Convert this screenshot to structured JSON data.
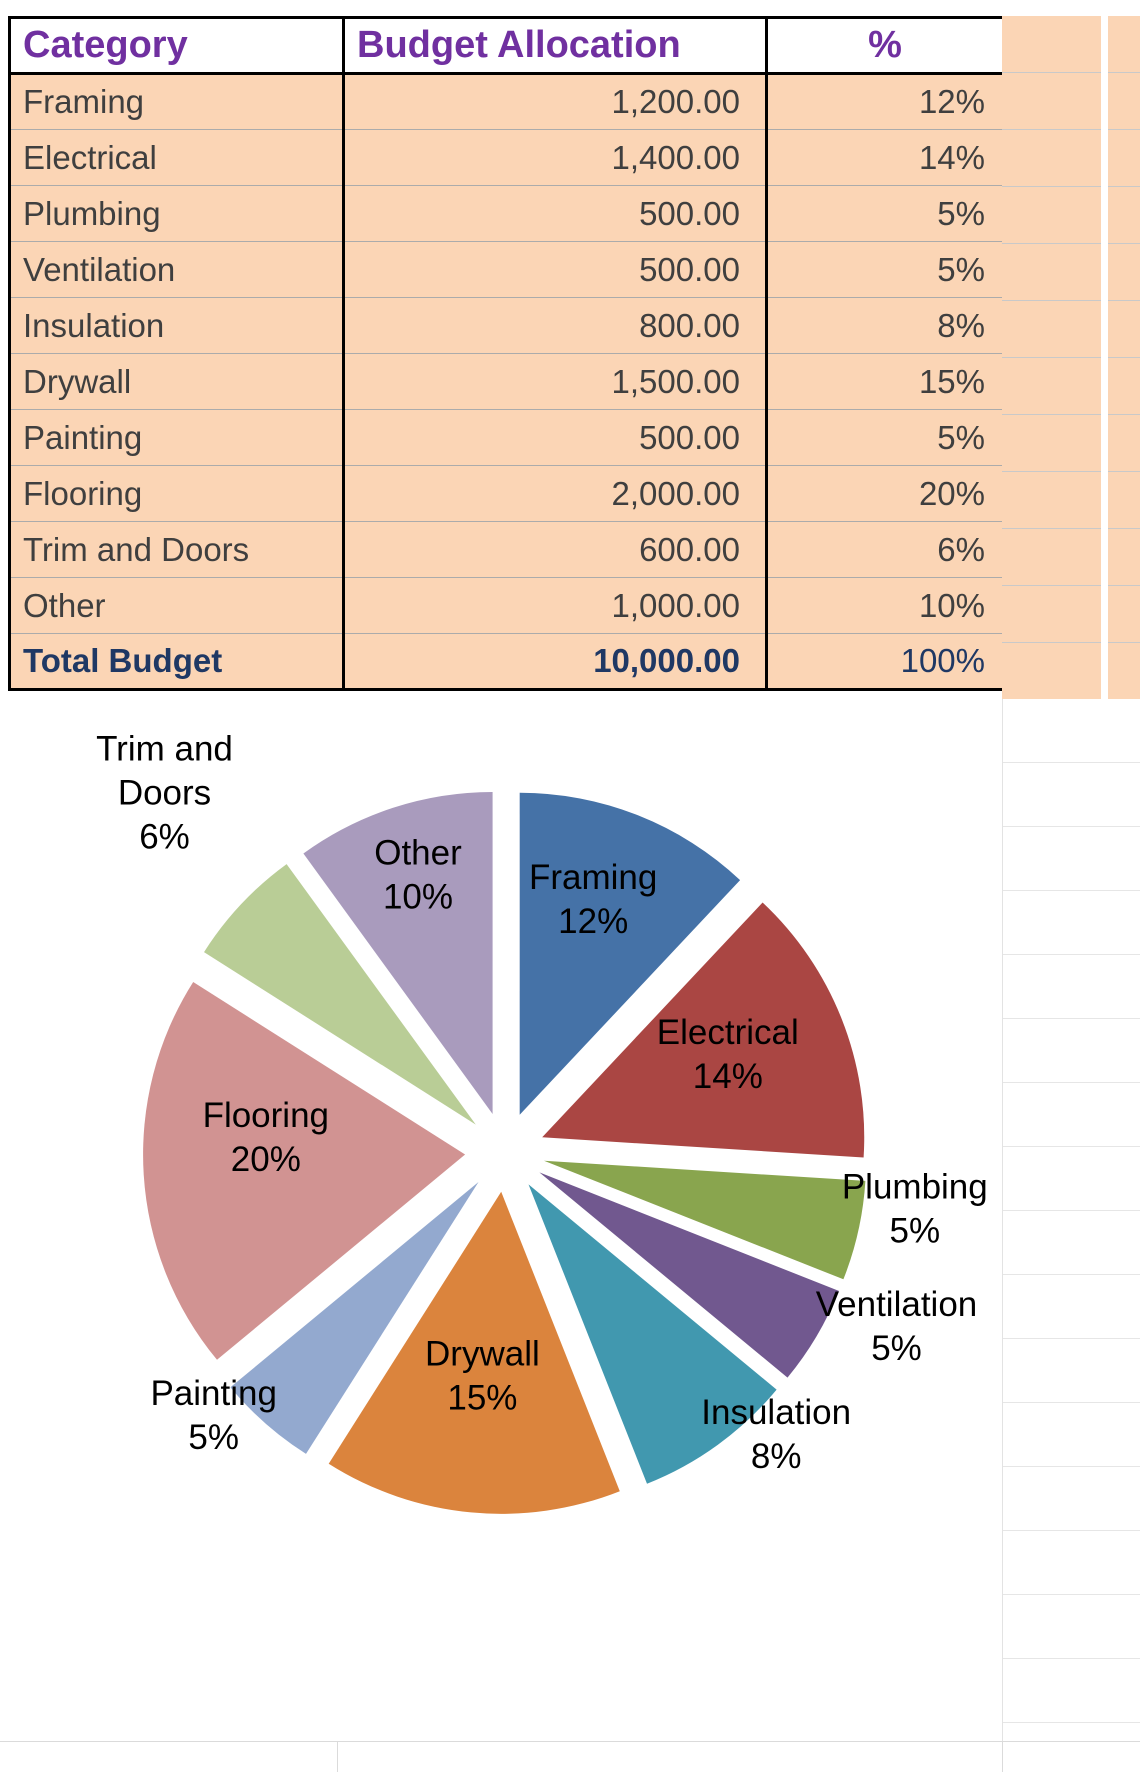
{
  "table": {
    "headers": [
      "Category",
      "Budget Allocation",
      "%"
    ],
    "rows": [
      {
        "category": "Framing",
        "budget": "1,200.00",
        "pct": "12%"
      },
      {
        "category": "Electrical",
        "budget": "1,400.00",
        "pct": "14%"
      },
      {
        "category": "Plumbing",
        "budget": "500.00",
        "pct": "5%"
      },
      {
        "category": "Ventilation",
        "budget": "500.00",
        "pct": "5%"
      },
      {
        "category": "Insulation",
        "budget": "800.00",
        "pct": "8%"
      },
      {
        "category": "Drywall",
        "budget": "1,500.00",
        "pct": "15%"
      },
      {
        "category": "Painting",
        "budget": "500.00",
        "pct": "5%"
      },
      {
        "category": "Flooring",
        "budget": "2,000.00",
        "pct": "20%"
      },
      {
        "category": "Trim and Doors",
        "budget": "600.00",
        "pct": "6%"
      },
      {
        "category": "Other",
        "budget": "1,000.00",
        "pct": "10%"
      }
    ],
    "total": {
      "category": "Total Budget",
      "budget": "10,000.00",
      "pct": "100%"
    }
  },
  "chart_data": {
    "type": "pie",
    "categories": [
      "Framing",
      "Electrical",
      "Plumbing",
      "Ventilation",
      "Insulation",
      "Drywall",
      "Painting",
      "Flooring",
      "Trim and Doors",
      "Other"
    ],
    "values": [
      12,
      14,
      5,
      5,
      8,
      15,
      5,
      20,
      6,
      10
    ],
    "unit": "percent",
    "budget_values": [
      1200,
      1400,
      500,
      500,
      800,
      1500,
      500,
      2000,
      600,
      1000
    ],
    "total_budget": 10000,
    "labels": [
      [
        "Framing",
        "12%"
      ],
      [
        "Electrical",
        "14%"
      ],
      [
        "Plumbing",
        "5%"
      ],
      [
        "Ventilation",
        "5%"
      ],
      [
        "Insulation",
        "8%"
      ],
      [
        "Drywall",
        "15%"
      ],
      [
        "Painting",
        "5%"
      ],
      [
        "Flooring",
        "20%"
      ],
      [
        "Trim and",
        "Doors",
        "6%"
      ],
      [
        "Other",
        "10%"
      ]
    ],
    "colors": [
      "#4572A7",
      "#AA4643",
      "#89A54E",
      "#71588F",
      "#4198AF",
      "#DB843D",
      "#93A9CF",
      "#D19392",
      "#B9CD96",
      "#A99BBD"
    ],
    "layout": {
      "start_angle_deg": 0,
      "direction": "clockwise",
      "exploded": true,
      "legend": "none",
      "label_positions": [
        "inside",
        "inside",
        "outside",
        "outside",
        "outside",
        "inside",
        "outside",
        "inside",
        "outside",
        "inside"
      ]
    }
  },
  "colors": {
    "header_text": "#7030A0",
    "cell_bg": "#FBD5B5",
    "body_text": "#3F3F3F",
    "total_text": "#1F3864",
    "row_grid": "#ABABAB",
    "table_border": "#000000"
  }
}
